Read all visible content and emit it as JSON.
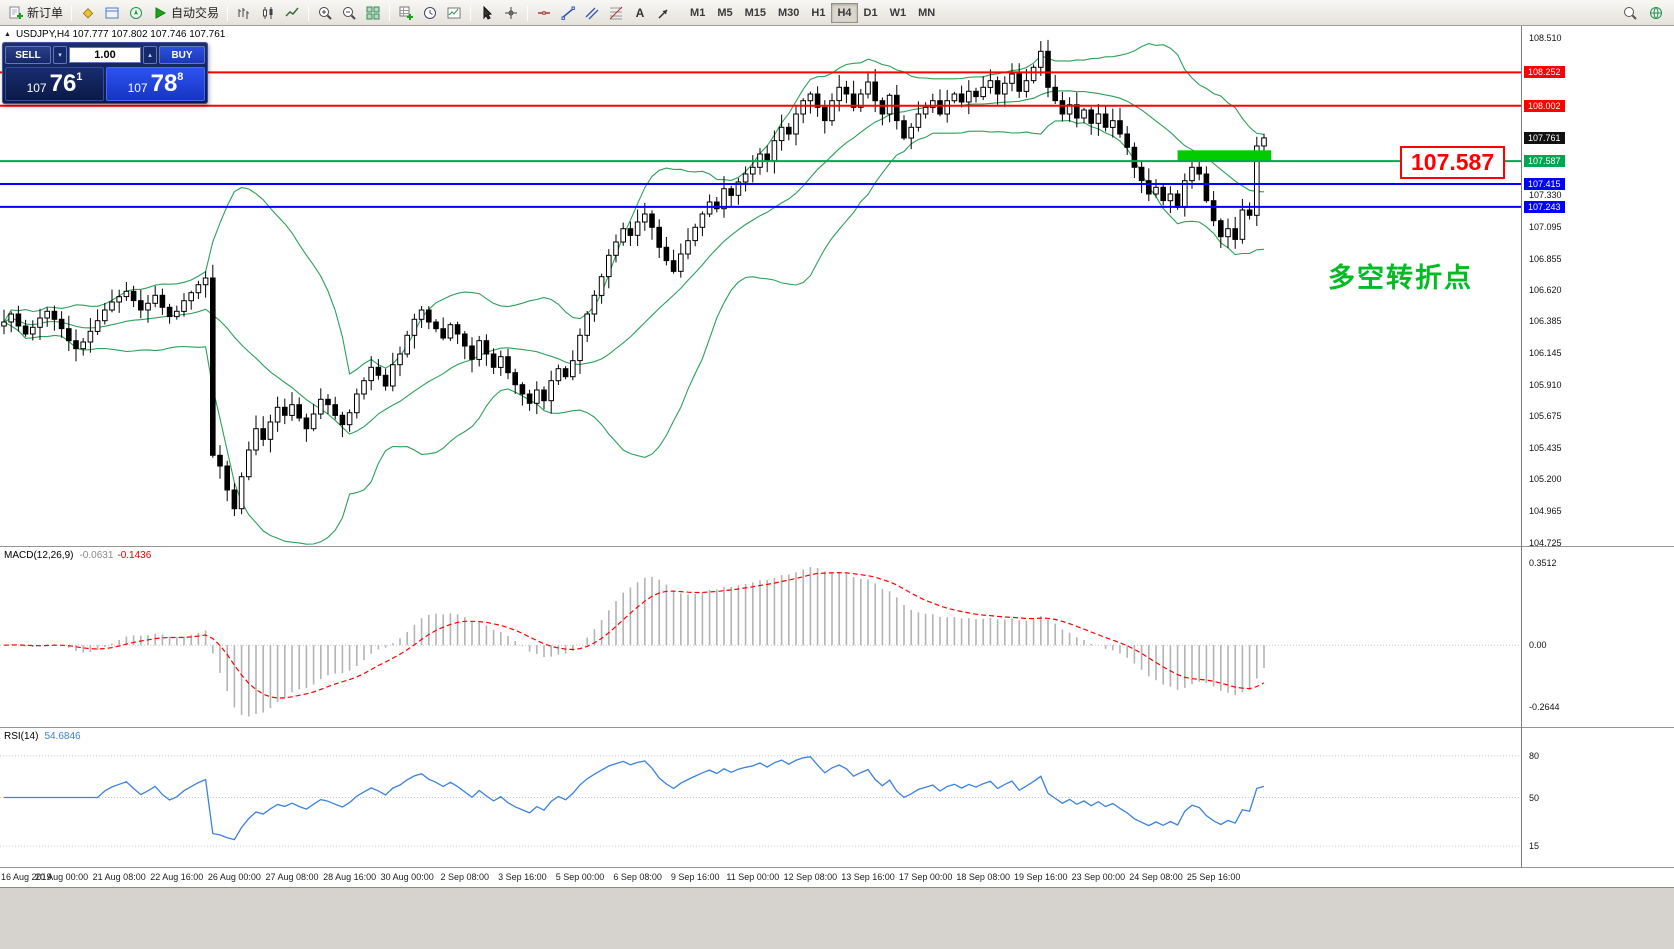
{
  "toolbar": {
    "groups": [
      {
        "items": [
          {
            "name": "new-order",
            "glyph": "doc-plus",
            "label": "新订单"
          }
        ]
      },
      {
        "items": [
          {
            "name": "market-watch",
            "glyph": "diamond"
          },
          {
            "name": "data-window",
            "glyph": "window"
          },
          {
            "name": "navigator",
            "glyph": "compass"
          },
          {
            "name": "autotrading",
            "glyph": "play",
            "label": "自动交易"
          }
        ]
      },
      {
        "items": [
          {
            "name": "bar-chart-mode",
            "glyph": "bars"
          },
          {
            "name": "candlestick-mode",
            "glyph": "candles"
          },
          {
            "name": "line-chart-mode",
            "glyph": "line"
          }
        ]
      },
      {
        "items": [
          {
            "name": "zoom-in",
            "glyph": "zoom-plus"
          },
          {
            "name": "zoom-out",
            "glyph": "zoom-minus"
          },
          {
            "name": "tile-windows",
            "glyph": "tile"
          }
        ]
      },
      {
        "items": [
          {
            "name": "indicators",
            "glyph": "grid-plus"
          },
          {
            "name": "periods",
            "glyph": "clock"
          },
          {
            "name": "templates",
            "glyph": "template"
          }
        ]
      },
      {
        "items": [
          {
            "name": "cursor-tool",
            "glyph": "cursor"
          },
          {
            "name": "crosshair-tool",
            "glyph": "crosshair"
          }
        ]
      },
      {
        "items": [
          {
            "name": "horizontal-line-tool",
            "glyph": "hline"
          },
          {
            "name": "trendline-tool",
            "glyph": "trendline"
          },
          {
            "name": "channel-tool",
            "glyph": "channel"
          },
          {
            "name": "fibonacci-tool",
            "glyph": "fibo"
          },
          {
            "name": "text-tool",
            "glyph": "text"
          },
          {
            "name": "arrow-tool",
            "glyph": "arrow-obj"
          }
        ]
      }
    ],
    "timeframes": {
      "labels": [
        "M1",
        "M5",
        "M15",
        "M30",
        "H1",
        "H4",
        "D1",
        "W1",
        "MN"
      ],
      "active": "H4"
    },
    "right_items": [
      {
        "name": "search",
        "glyph": "magnifier"
      },
      {
        "name": "community",
        "glyph": "globe"
      }
    ]
  },
  "symbol_line": {
    "text": "USDJPY,H4 107.777 107.802 107.746 107.761"
  },
  "trade_panel": {
    "sell_label": "SELL",
    "buy_label": "BUY",
    "volume": "1.00",
    "sell_price": {
      "prefix": "107",
      "big": "76",
      "sup": "1"
    },
    "buy_price": {
      "prefix": "107",
      "big": "78",
      "sup": "8"
    }
  },
  "indicator_labels": {
    "macd": {
      "name": "MACD(12,26,9)",
      "main_value": "-0.0631",
      "signal_value": "-0.1436"
    },
    "rsi": {
      "name": "RSI(14)",
      "value": "54.6846"
    }
  },
  "axes": {
    "price_ticks": [
      "108.510",
      "107.330",
      "107.095",
      "106.855",
      "106.620",
      "106.385",
      "106.145",
      "105.910",
      "105.675",
      "105.435",
      "105.200",
      "104.965",
      "104.725"
    ],
    "macd_ticks": [
      "0.3512",
      "0.00",
      "-0.2644"
    ],
    "rsi_ticks": [
      "80",
      "50",
      "15"
    ],
    "time_labels": [
      "16 Aug 2019",
      "20 Aug 00:00",
      "21 Aug 08:00",
      "22 Aug 16:00",
      "26 Aug 00:00",
      "27 Aug 08:00",
      "28 Aug 16:00",
      "30 Aug 00:00",
      "2 Sep 08:00",
      "3 Sep 16:00",
      "5 Sep 00:00",
      "6 Sep 08:00",
      "9 Sep 16:00",
      "11 Sep 00:00",
      "12 Sep 08:00",
      "13 Sep 16:00",
      "17 Sep 00:00",
      "18 Sep 08:00",
      "19 Sep 16:00",
      "23 Sep 00:00",
      "24 Sep 08:00",
      "25 Sep 16:00"
    ]
  },
  "colors": {
    "background": "#ffffff",
    "bull": "#ffffff",
    "bear": "#000000",
    "wick": "#000000",
    "bollinger": "#2ca05a",
    "macd_histogram": "#b4b4b4",
    "macd_signal": "#ff0000",
    "rsi_line": "#3b82e0",
    "grid_dotted": "#c8c8c8",
    "level_red": "#ff0000",
    "level_green": "#00a651",
    "level_blue": "#0000ff",
    "highlight": "#00cc00",
    "current_tag": "#111111"
  },
  "chart_data": {
    "type": "candlestick",
    "symbol": "USDJPY",
    "timeframe": "H4",
    "title": "USDJPY,H4",
    "ylim": [
      104.7,
      108.6
    ],
    "first_open": 106.35,
    "closes": [
      106.38,
      106.44,
      106.35,
      106.29,
      106.34,
      106.41,
      106.46,
      106.4,
      106.33,
      106.24,
      106.18,
      106.23,
      106.31,
      106.39,
      106.47,
      106.53,
      106.57,
      106.61,
      106.54,
      106.47,
      106.52,
      106.58,
      106.49,
      106.42,
      106.46,
      106.54,
      106.6,
      106.66,
      106.71,
      105.38,
      105.3,
      105.12,
      104.98,
      105.22,
      105.42,
      105.58,
      105.5,
      105.63,
      105.74,
      105.68,
      105.76,
      105.66,
      105.58,
      105.69,
      105.8,
      105.76,
      105.68,
      105.61,
      105.7,
      105.84,
      105.94,
      106.04,
      105.98,
      105.9,
      106.06,
      106.14,
      106.28,
      106.4,
      106.47,
      106.38,
      106.33,
      106.26,
      106.36,
      106.29,
      106.2,
      106.1,
      106.24,
      106.14,
      106.04,
      106.12,
      106.0,
      105.91,
      105.84,
      105.77,
      105.87,
      105.79,
      105.94,
      106.03,
      105.97,
      106.09,
      106.28,
      106.44,
      106.58,
      106.72,
      106.88,
      106.98,
      107.08,
      107.03,
      107.13,
      107.19,
      107.09,
      106.94,
      106.84,
      106.76,
      106.89,
      106.99,
      107.09,
      107.19,
      107.28,
      107.23,
      107.38,
      107.33,
      107.43,
      107.49,
      107.54,
      107.64,
      107.59,
      107.74,
      107.84,
      107.79,
      107.94,
      108.04,
      108.09,
      107.99,
      107.89,
      108.04,
      108.14,
      108.09,
      107.99,
      108.09,
      108.18,
      108.04,
      107.94,
      108.08,
      107.89,
      107.76,
      107.84,
      107.94,
      107.99,
      108.04,
      107.94,
      108.04,
      108.09,
      108.03,
      108.11,
      108.07,
      108.14,
      108.19,
      108.09,
      108.17,
      108.24,
      108.11,
      108.19,
      108.29,
      108.41,
      108.14,
      108.04,
      107.94,
      108.01,
      107.91,
      107.97,
      107.87,
      107.94,
      107.84,
      107.89,
      107.79,
      107.69,
      107.54,
      107.44,
      107.34,
      107.39,
      107.29,
      107.34,
      107.24,
      107.44,
      107.54,
      107.49,
      107.29,
      107.14,
      107.02,
      107.08,
      107.0,
      107.22,
      107.18,
      107.7,
      107.761
    ],
    "levels": [
      {
        "price": 108.252,
        "label": "108.252",
        "color": "#ff0000"
      },
      {
        "price": 108.002,
        "label": "108.002",
        "color": "#ff0000"
      },
      {
        "price": 107.587,
        "label": "107.587",
        "color": "#00a651"
      },
      {
        "price": 107.415,
        "label": "107.415",
        "color": "#0000ff"
      },
      {
        "price": 107.243,
        "label": "107.243",
        "color": "#0000ff"
      }
    ],
    "current_price": {
      "value": 107.761,
      "label": "107.761",
      "color": "#111111"
    },
    "highlight_rect": {
      "from_index": 163,
      "to_index": 176,
      "price_low": 107.587,
      "price_high": 107.668,
      "color": "#00cc00"
    },
    "annotations": {
      "price_callout": "107.587",
      "turning_point": "多空转折点"
    },
    "indicators": {
      "bollinger": {
        "period": 20,
        "deviation": 2
      },
      "macd": {
        "fast": 12,
        "slow": 26,
        "signal": 9,
        "ylim": [
          -0.35,
          0.42
        ],
        "last_main": -0.0631,
        "last_signal": -0.1436
      },
      "rsi": {
        "period": 14,
        "ylim": [
          0,
          100
        ],
        "last_value": 54.6846,
        "levels": [
          80,
          50,
          15
        ]
      }
    }
  }
}
